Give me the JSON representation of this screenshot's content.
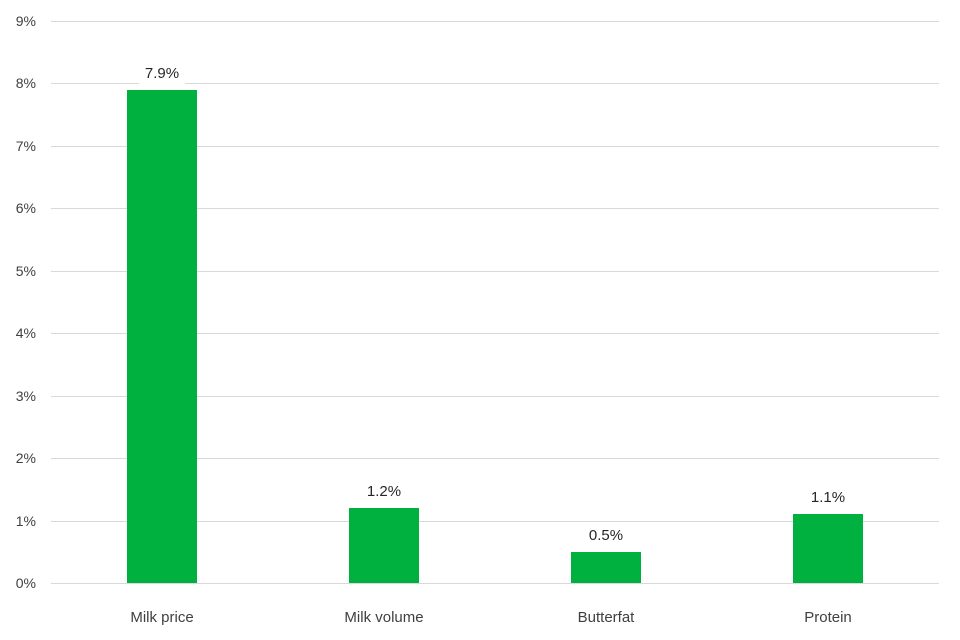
{
  "chart_data": {
    "type": "bar",
    "categories": [
      "Milk price",
      "Milk volume",
      "Butterfat",
      "Protein"
    ],
    "values": [
      7.9,
      1.2,
      0.5,
      1.1
    ],
    "value_labels": [
      "7.9%",
      "1.2%",
      "0.5%",
      "1.1%"
    ],
    "y_tick_labels": [
      "0%",
      "1%",
      "2%",
      "3%",
      "4%",
      "5%",
      "6%",
      "7%",
      "8%",
      "9%"
    ],
    "ylim": [
      0,
      9
    ],
    "y_tick_step": 1,
    "grid": true,
    "legend": "none",
    "xlabel": "",
    "ylabel": "",
    "colors": {
      "bar": "#00b140",
      "gridline": "#d9d9d9",
      "axis_label": "#404040",
      "data_label": "#262626",
      "background": "#ffffff"
    }
  }
}
